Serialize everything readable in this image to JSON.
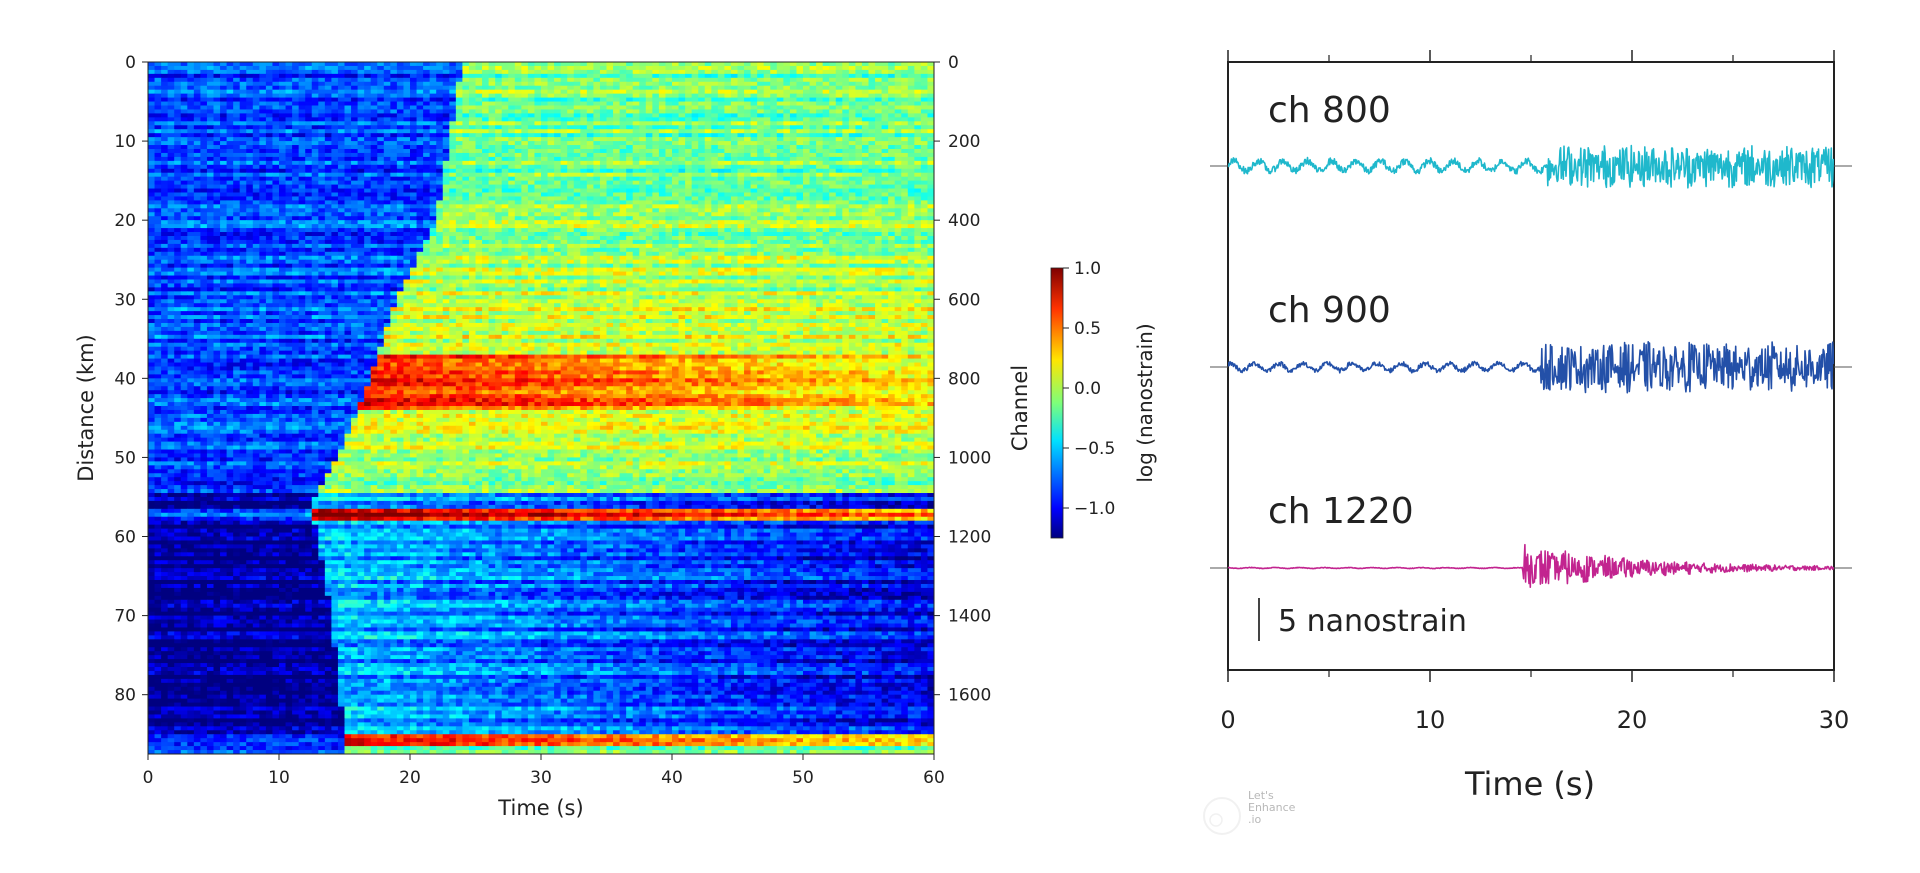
{
  "chart_data": [
    {
      "type": "heatmap",
      "xlabel": "Time (s)",
      "ylabel": "Distance (km)",
      "ylabel_right": "Channel",
      "xlim": [
        0,
        60
      ],
      "ylim": [
        0,
        87.5
      ],
      "xticks": [
        0,
        10,
        20,
        30,
        40,
        50,
        60
      ],
      "yticks": [
        0,
        10,
        20,
        30,
        40,
        50,
        60,
        70,
        80
      ],
      "channel_lim": [
        0,
        1750
      ],
      "channel_ticks": [
        0,
        200,
        400,
        600,
        800,
        1000,
        1200,
        1400,
        1600
      ],
      "colormap": "jet",
      "colorbar": {
        "label": "log (nanostrain)",
        "range": [
          -1.25,
          1.0
        ],
        "ticks": [
          1.0,
          0.5,
          0.0,
          -0.5,
          -1.0
        ],
        "tick_labels": [
          "1.0",
          "0.5",
          "0.0",
          "−0.5",
          "−1.0"
        ]
      },
      "wavefront": [
        {
          "distance_km": 0,
          "time_s": 24
        },
        {
          "distance_km": 20,
          "time_s": 22
        },
        {
          "distance_km": 30,
          "time_s": 19
        },
        {
          "distance_km": 40,
          "time_s": 17
        },
        {
          "distance_km": 50,
          "time_s": 14.5
        },
        {
          "distance_km": 56,
          "time_s": 12.5
        },
        {
          "distance_km": 70,
          "time_s": 14
        },
        {
          "distance_km": 85,
          "time_s": 15
        }
      ],
      "high_amplitude_bands_km": [
        {
          "from": 37,
          "to": 44,
          "level": 0.7
        },
        {
          "from": 56.5,
          "to": 58,
          "level": 0.9
        },
        {
          "from": 85,
          "to": 86.5,
          "level": 0.8
        }
      ],
      "low_amplitude_bands_km": [
        {
          "from": 54.5,
          "to": 56.5,
          "level": -1.2
        },
        {
          "from": 58,
          "to": 85,
          "level": -1.2
        }
      ]
    },
    {
      "type": "line",
      "xlabel": "Time (s)",
      "xlim": [
        0,
        30
      ],
      "xticks": [
        0,
        10,
        20,
        30
      ],
      "scale_bar_label": "5 nanostrain",
      "series": [
        {
          "name": "ch 800",
          "color": "#1fb8cc",
          "onset_s": 15.8,
          "pre_amplitude": 1.0,
          "post_amplitude": 2.6
        },
        {
          "name": "ch 900",
          "color": "#2350a8",
          "onset_s": 15.5,
          "pre_amplitude": 0.7,
          "post_amplitude": 3.0
        },
        {
          "name": "ch 1220",
          "color": "#c2248f",
          "onset_s": 14.6,
          "pre_amplitude": 0.08,
          "post_amplitude": 2.8
        }
      ]
    }
  ],
  "watermark": {
    "line1": "Let's",
    "line2": "Enhance",
    "line3": ".io"
  }
}
